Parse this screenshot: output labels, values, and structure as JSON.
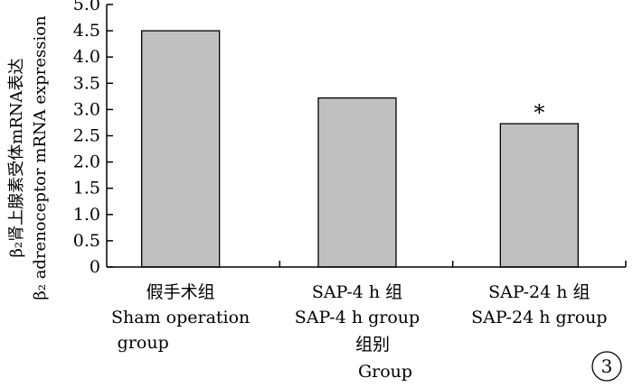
{
  "chart_data": {
    "type": "bar",
    "ylim": [
      0,
      5.0
    ],
    "y_ticks": [
      "0",
      "0.5",
      "1.0",
      "1.5",
      "2.0",
      "2.5",
      "3.0",
      "3.5",
      "4.0",
      "4.5",
      "5.0"
    ],
    "y_tick_values": [
      0,
      0.5,
      1.0,
      1.5,
      2.0,
      2.5,
      3.0,
      3.5,
      4.0,
      4.5,
      5.0
    ],
    "ylabel_cn": "β₂肾上腺素受体mRNA表达",
    "ylabel_en": "β₂ adrenoceptor mRNA expression",
    "categories": [
      {
        "cn": "假手术组",
        "en1": "Sham operation",
        "en2": "group"
      },
      {
        "cn": "SAP-4 h 组",
        "en1": "SAP-4 h group",
        "en2": ""
      },
      {
        "cn": "SAP-24 h 组",
        "en1": "SAP-24 h group",
        "en2": ""
      }
    ],
    "values": [
      4.5,
      3.22,
      2.73
    ],
    "annotations": [
      "",
      "",
      "*"
    ],
    "xlabel_cn": "组别",
    "xlabel_en": "Group",
    "bar_color": "#c0c0c0",
    "grid": false,
    "figure_number": "3"
  }
}
